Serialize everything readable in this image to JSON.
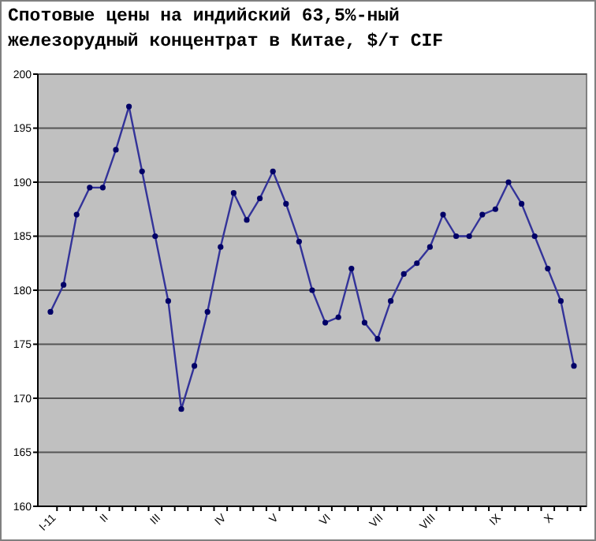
{
  "chart_data": {
    "type": "line",
    "title": "Спотовые цены на индийский 63,5%-ный железорудный концентрат в Китае, $/т CIF",
    "categories": [
      "I-11",
      null,
      null,
      null,
      "II",
      null,
      null,
      null,
      "III",
      null,
      null,
      null,
      null,
      "IV",
      null,
      null,
      null,
      "V",
      null,
      null,
      null,
      "VI",
      null,
      null,
      null,
      "VII",
      null,
      null,
      null,
      "VIII",
      null,
      null,
      null,
      null,
      "IX",
      null,
      null,
      null,
      "X",
      null,
      null
    ],
    "series": [
      {
        "color": "#333399",
        "values": [
          178,
          180.5,
          187,
          189.5,
          189.5,
          193,
          197,
          191,
          185,
          179,
          169,
          173,
          178,
          184,
          189,
          186.5,
          188.5,
          191,
          188,
          184.5,
          180,
          177,
          177.5,
          182,
          177,
          175.5,
          179,
          181.5,
          182.5,
          184,
          187,
          185,
          185,
          187,
          187.5,
          190,
          188,
          185,
          182,
          179,
          173
        ]
      }
    ],
    "ylim": [
      160,
      200
    ],
    "yticks": [
      160,
      165,
      170,
      175,
      180,
      185,
      190,
      195,
      200
    ],
    "grid": "y",
    "marker": "circle",
    "line_style": "solid"
  }
}
